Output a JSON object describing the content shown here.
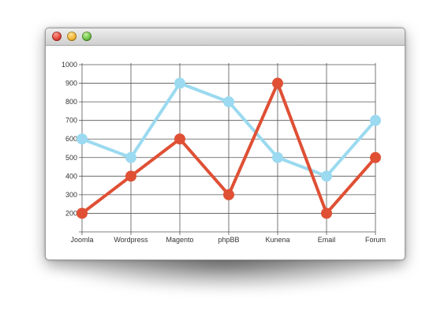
{
  "window": {
    "controls": [
      "close",
      "minimize",
      "zoom"
    ]
  },
  "chart_data": {
    "type": "line",
    "title": "",
    "xlabel": "",
    "ylabel": "",
    "categories": [
      "Joomla",
      "Wordpress",
      "Magento",
      "phpBB",
      "Kunena",
      "Email",
      "Forum"
    ],
    "y_ticks": [
      200,
      300,
      400,
      500,
      600,
      700,
      800,
      900,
      1000
    ],
    "ylim": [
      100,
      1000
    ],
    "grid": true,
    "legend": "none",
    "series": [
      {
        "color": "#9bdaf0",
        "values": [
          600,
          500,
          900,
          800,
          500,
          400,
          700
        ]
      },
      {
        "color": "#df5035",
        "values": [
          200,
          400,
          600,
          300,
          900,
          200,
          500
        ]
      }
    ]
  }
}
